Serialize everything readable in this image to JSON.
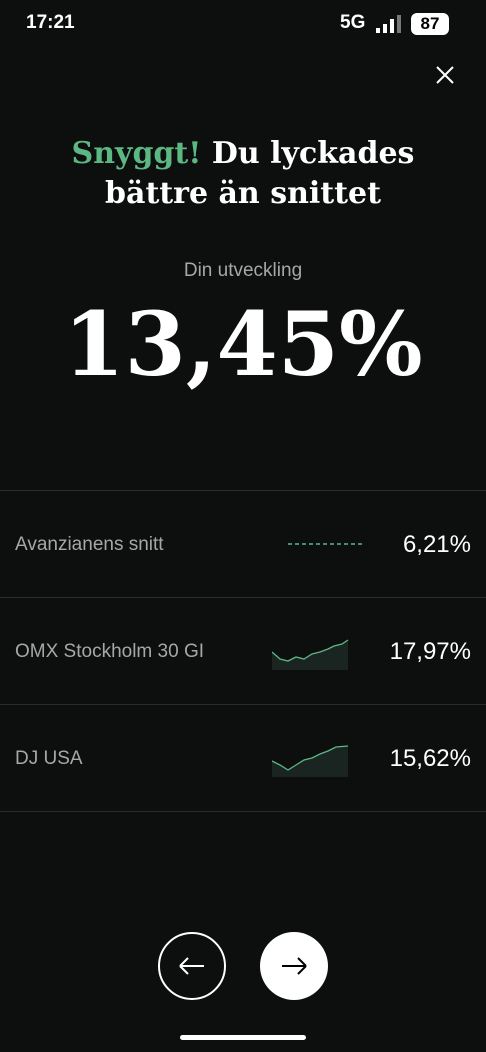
{
  "status_bar": {
    "time": "17:21",
    "network": "5G",
    "battery": "87"
  },
  "headline": {
    "highlight": "Snyggt!",
    "line1": "Du lyckades",
    "line2": "bättre än snittet"
  },
  "result": {
    "label": "Din utveckling",
    "value": "13,45%"
  },
  "rows": [
    {
      "label": "Avanzianens snitt",
      "value": "6,21%"
    },
    {
      "label": "OMX Stockholm 30 GI",
      "value": "17,97%"
    },
    {
      "label": "DJ USA",
      "value": "15,62%"
    }
  ]
}
